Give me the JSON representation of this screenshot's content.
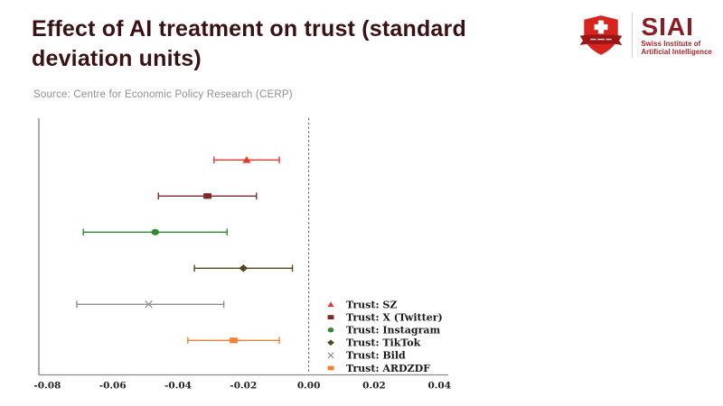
{
  "header": {
    "title_lines": [
      "Effect of AI treatment on trust (standard",
      "deviation units)"
    ],
    "source": "Source: Centre for Economic Policy Research (CERP)"
  },
  "logo": {
    "acronym": "SIAI",
    "subtitle_lines": [
      "Swiss Institute of",
      "Artificial Intelligence"
    ]
  },
  "theme": {
    "title-color": "#3b1214",
    "source-color": "#8f8f8f",
    "logo-red": "#d7251d",
    "logo-banner-red": "#9e1414",
    "logo-text-red": "#8c1c22",
    "logo-sub-red": "#a3242a",
    "axis-color": "#8a8a8a",
    "tick-text-color": "#222222",
    "zero-line-color": "#4a4a4a"
  },
  "chart_data": {
    "type": "scatter",
    "variant": "horizontal-errorbar-forest-plot",
    "title": "Effect of AI treatment on trust (standard deviation units)",
    "xlabel": "",
    "ylabel": "",
    "xlim": [
      -0.0826,
      0.0427
    ],
    "x_ticks": [
      -0.08,
      -0.06,
      -0.04,
      -0.02,
      0.0,
      0.02,
      0.04
    ],
    "x_tick_labels": [
      "-0.08",
      "-0.06",
      "-0.04",
      "-0.02",
      "0.00",
      "0.02",
      "0.04"
    ],
    "zero_reference_line": 0.0,
    "grid": false,
    "legend_position": "inside lower right",
    "series": [
      {
        "label": "Trust: SZ",
        "marker": "triangle",
        "color": "#e8392c",
        "value": -0.019,
        "ci_low": -0.029,
        "ci_high": -0.009
      },
      {
        "label": "Trust: X (Twitter)",
        "marker": "square",
        "color": "#7e2a28",
        "value": -0.031,
        "ci_low": -0.046,
        "ci_high": -0.016
      },
      {
        "label": "Trust: Instagram",
        "marker": "circle",
        "color": "#2f8b2f",
        "value": -0.047,
        "ci_low": -0.069,
        "ci_high": -0.025
      },
      {
        "label": "Trust: TikTok",
        "marker": "diamond",
        "color": "#55481c",
        "value": -0.02,
        "ci_low": -0.035,
        "ci_high": -0.005
      },
      {
        "label": "Trust: Bild",
        "marker": "x",
        "color": "#8f8f8f",
        "value": -0.049,
        "ci_low": -0.071,
        "ci_high": -0.026
      },
      {
        "label": "Trust: ARDZDF",
        "marker": "square",
        "color": "#ee8433",
        "value": -0.023,
        "ci_low": -0.037,
        "ci_high": -0.009
      }
    ]
  }
}
